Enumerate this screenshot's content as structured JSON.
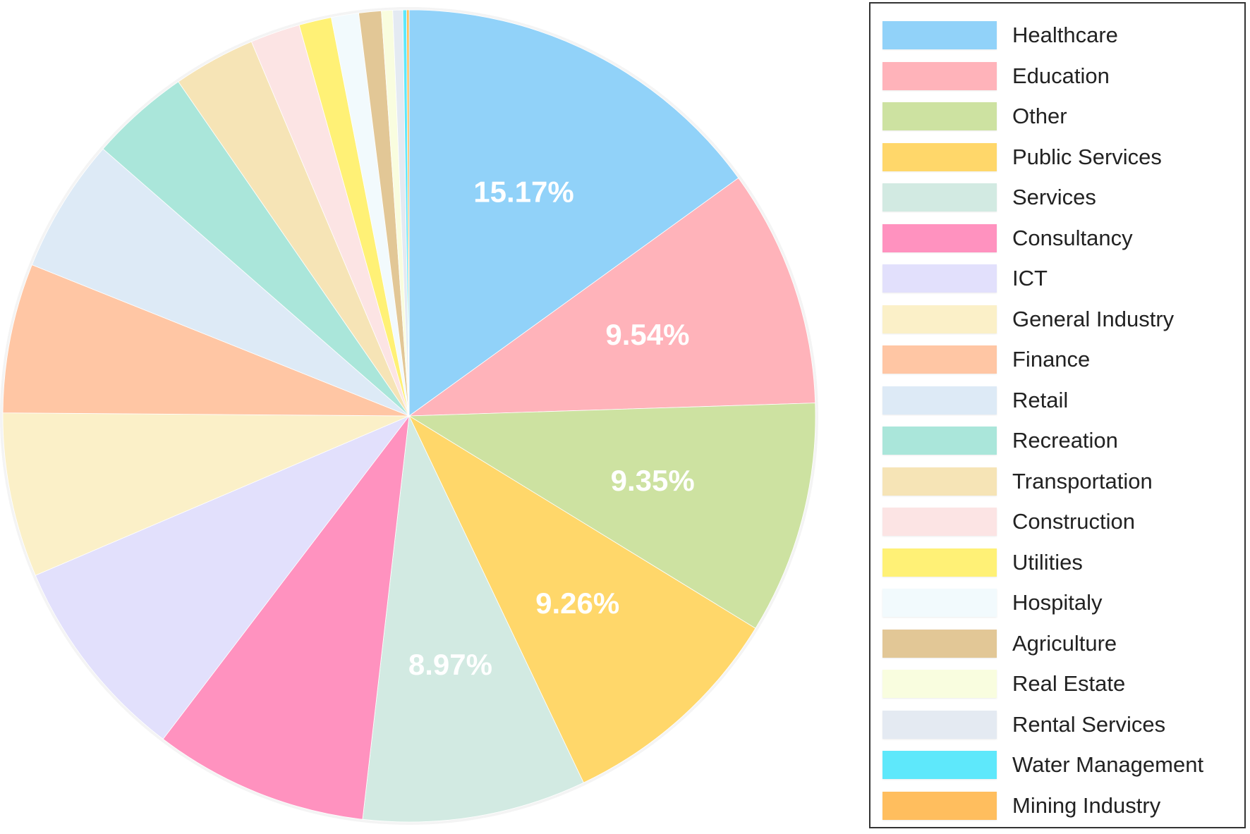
{
  "chart_data": {
    "type": "pie",
    "start_angle_deg": 0,
    "direction": "clockwise",
    "legend_position": "right",
    "series": [
      {
        "name": "Healthcare",
        "value": 15.17,
        "color": "#91D2F9",
        "label": "15.17%"
      },
      {
        "name": "Education",
        "value": 9.54,
        "color": "#FFB3BA",
        "label": "9.54%"
      },
      {
        "name": "Other",
        "value": 9.35,
        "color": "#CDE2A1",
        "label": "9.35%"
      },
      {
        "name": "Public Services",
        "value": 9.26,
        "color": "#FFD76A",
        "label": "9.26%"
      },
      {
        "name": "Services",
        "value": 8.97,
        "color": "#D2EAE2",
        "label": "8.97%"
      },
      {
        "name": "Consultancy",
        "value": 8.6,
        "color": "#FF92BF",
        "label": ""
      },
      {
        "name": "ICT",
        "value": 8.3,
        "color": "#E2E0FC",
        "label": ""
      },
      {
        "name": "General Industry",
        "value": 6.6,
        "color": "#FBF0C8",
        "label": ""
      },
      {
        "name": "Finance",
        "value": 6.0,
        "color": "#FFC6A4",
        "label": ""
      },
      {
        "name": "Retail",
        "value": 5.4,
        "color": "#DDEAF6",
        "label": ""
      },
      {
        "name": "Recreation",
        "value": 4.0,
        "color": "#AAE6DA",
        "label": ""
      },
      {
        "name": "Transportation",
        "value": 3.3,
        "color": "#F6E4B6",
        "label": ""
      },
      {
        "name": "Construction",
        "value": 2.0,
        "color": "#FCE4E4",
        "label": ""
      },
      {
        "name": "Utilities",
        "value": 1.3,
        "color": "#FFF176",
        "label": ""
      },
      {
        "name": "Hospitaly",
        "value": 1.1,
        "color": "#F2FAFD",
        "label": ""
      },
      {
        "name": "Agriculture",
        "value": 0.9,
        "color": "#E2C796",
        "label": ""
      },
      {
        "name": "Real Estate",
        "value": 0.45,
        "color": "#F9FDDF",
        "label": ""
      },
      {
        "name": "Rental Services",
        "value": 0.4,
        "color": "#E4EAF2",
        "label": ""
      },
      {
        "name": "Water Management",
        "value": 0.15,
        "color": "#5EE8FB",
        "label": ""
      },
      {
        "name": "Mining Industry",
        "value": 0.1,
        "color": "#FFBE5E",
        "label": ""
      }
    ]
  }
}
